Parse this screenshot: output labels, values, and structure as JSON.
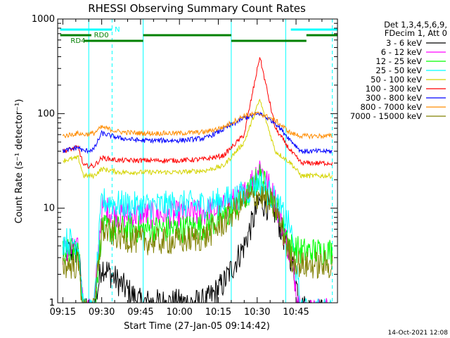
{
  "chart_data": {
    "type": "line",
    "title": "RHESSI Observing Summary Count Rates",
    "xlabel": "Start Time (27-Jan-05 09:14:42)",
    "ylabel": "Count Rate (s⁻¹ detector⁻¹)",
    "yscale": "log",
    "ylim": [
      1,
      1000
    ],
    "xlim_minutes": [
      -2,
      106
    ],
    "y_tick_labels": [
      "1",
      "10",
      "100",
      "1000"
    ],
    "x_ticks": [
      {
        "t": 0,
        "label": "09:15"
      },
      {
        "t": 15,
        "label": "09:30"
      },
      {
        "t": 30,
        "label": "09:45"
      },
      {
        "t": 45,
        "label": "10:00"
      },
      {
        "t": 60,
        "label": "10:15"
      },
      {
        "t": 75,
        "label": "10:30"
      },
      {
        "t": 90,
        "label": "10:45"
      }
    ],
    "legend_header": [
      "Det 1,3,4,5,6,9,",
      "FDecim 1, Att 0"
    ],
    "footer_date": "14-Oct-2021 12:08",
    "day_intervals_minutes": [
      [
        10,
        31
      ],
      [
        65,
        86
      ]
    ],
    "flags": [
      {
        "name": "N",
        "color": "#00ffff",
        "label_t": 20,
        "intervals": [
          [
            -1,
            19
          ],
          [
            88,
            106
          ]
        ]
      },
      {
        "name": "RD0",
        "color": "#008000",
        "label_t": 12,
        "intervals": [
          [
            -1,
            11
          ],
          [
            31,
            65
          ],
          [
            94,
            106
          ]
        ]
      },
      {
        "name": "RD4",
        "color": "#008000",
        "label_t": 3,
        "intervals": [
          [
            8,
            31
          ],
          [
            65,
            94
          ]
        ]
      }
    ],
    "saa_dashed_minutes": [
      19,
      104
    ],
    "series": [
      {
        "name": "3 - 6 keV",
        "color": "#000000",
        "values": [
          3.5,
          3.5,
          0.8,
          0.8,
          2.5,
          1.6,
          1.0,
          1.0,
          1.0,
          1.6,
          4,
          12,
          9,
          3,
          0.9,
          0.8,
          0.8
        ]
      },
      {
        "name": "6 - 12 keV",
        "color": "#ff00ff",
        "values": [
          3.5,
          3.5,
          0.8,
          0.8,
          10,
          8.5,
          8.5,
          8.5,
          9,
          10,
          14,
          28,
          12,
          3,
          0.8,
          0.8,
          0.8
        ]
      },
      {
        "name": "12 - 25 keV",
        "color": "#00ff00",
        "values": [
          3.5,
          3.5,
          0.8,
          0.8,
          6,
          6,
          6,
          6,
          6.5,
          8,
          12,
          22,
          11,
          4,
          3.5,
          3.5,
          3.5
        ]
      },
      {
        "name": "25 - 50 keV",
        "color": "#00ffff",
        "values": [
          4.5,
          4.5,
          0.8,
          0.8,
          12,
          11,
          10.5,
          11,
          11,
          12,
          14,
          19,
          12,
          6,
          0.8,
          0.8,
          0.8
        ]
      },
      {
        "name": "50 - 100 keV",
        "color": "#d4d400",
        "values": [
          32,
          34,
          22,
          22,
          26,
          24,
          24,
          24,
          25,
          28,
          50,
          140,
          40,
          30,
          22,
          22,
          22
        ]
      },
      {
        "name": "100 - 300 keV",
        "color": "#ff0000",
        "values": [
          40,
          44,
          28,
          28,
          34,
          32,
          32,
          32,
          33,
          36,
          60,
          400,
          70,
          40,
          30,
          30,
          30
        ]
      },
      {
        "name": "300 - 800 keV",
        "color": "#0000ff",
        "values": [
          40,
          44,
          40,
          42,
          62,
          55,
          52,
          52,
          55,
          68,
          90,
          100,
          80,
          52,
          40,
          40,
          40
        ]
      },
      {
        "name": "800 - 7000 keV",
        "color": "#ff8c00",
        "values": [
          58,
          62,
          60,
          62,
          72,
          64,
          62,
          62,
          64,
          72,
          95,
          100,
          85,
          62,
          58,
          58,
          58
        ]
      },
      {
        "name": "7000 - 15000 keV",
        "color": "#808000",
        "values": [
          2.5,
          2.5,
          0.8,
          0.8,
          6,
          5,
          4.5,
          4.5,
          5,
          7,
          12,
          14,
          10,
          3,
          2.5,
          2.5,
          2.5
        ]
      }
    ],
    "series_t": [
      0,
      6,
      8,
      12,
      15,
      22,
      30,
      45,
      55,
      62,
      70,
      76,
      82,
      88,
      92,
      98,
      104
    ]
  }
}
